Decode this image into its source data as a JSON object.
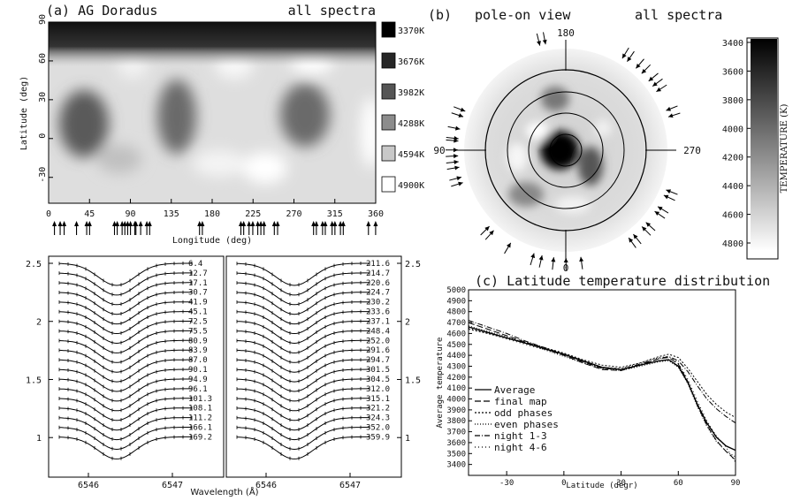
{
  "panel_a": {
    "title_left": "(a) AG Doradus",
    "title_right": "all spectra",
    "xlabel": "Longitude (deg)",
    "ylabel": "Latitude (deg)",
    "xticks": [
      "0",
      "45",
      "90",
      "135",
      "180",
      "225",
      "270",
      "315",
      "360"
    ],
    "yticks": [
      "90",
      "60",
      "30",
      "0",
      "-30"
    ],
    "legend": [
      {
        "label": "3370K",
        "color": "#000000"
      },
      {
        "label": "3676K",
        "color": "#262626"
      },
      {
        "label": "3982K",
        "color": "#555555"
      },
      {
        "label": "4288K",
        "color": "#8c8c8c"
      },
      {
        "label": "4594K",
        "color": "#c8c8c8"
      },
      {
        "label": "4900K",
        "color": "#ffffff"
      }
    ]
  },
  "panel_b": {
    "title_left": "(b)",
    "title_mid": "pole-on view",
    "title_right": "all spectra",
    "labels": [
      "180",
      "90",
      "270",
      "0"
    ],
    "colorbar_label": "TEMPERATURE (K)",
    "colorbar_ticks": [
      "3400",
      "3600",
      "3800",
      "4000",
      "4200",
      "4400",
      "4600",
      "4800"
    ]
  },
  "panel_lines": {
    "xlabel": "Wavelength (Å)",
    "xticks_left": [
      "6546",
      "6547"
    ],
    "xticks_right": [
      "6546",
      "6547"
    ],
    "yticks": [
      "2.5",
      "2",
      "1.5",
      "1"
    ],
    "phases_left": [
      "6.4",
      "12.7",
      "17.1",
      "30.7",
      "41.9",
      "45.1",
      "72.5",
      "75.5",
      "80.9",
      "83.9",
      "87.0",
      "90.1",
      "94.9",
      "96.1",
      "101.3",
      "108.1",
      "111.2",
      "166.1",
      "169.2"
    ],
    "phases_right": [
      "211.6",
      "214.7",
      "220.6",
      "224.7",
      "230.2",
      "233.6",
      "237.1",
      "248.4",
      "252.0",
      "291.6",
      "294.7",
      "301.5",
      "304.5",
      "312.0",
      "315.1",
      "321.2",
      "324.3",
      "352.0",
      "359.9"
    ]
  },
  "chart_data": [
    {
      "type": "heatmap",
      "title": "(a) AG Doradus",
      "subtitle": "all spectra",
      "xlabel": "Longitude (deg)",
      "ylabel": "Latitude (deg)",
      "xlim": [
        0,
        360
      ],
      "ylim": [
        -50,
        90
      ],
      "spots": [
        {
          "lon": 0,
          "lat": 90,
          "temp_k": 3370
        },
        {
          "lon": 35,
          "lat": 20,
          "temp_k": 3900
        },
        {
          "lon": 115,
          "lat": 60,
          "temp_k": 4250
        },
        {
          "lon": 165,
          "lat": 20,
          "temp_k": 4000
        },
        {
          "lon": 225,
          "lat": 60,
          "temp_k": 4250
        },
        {
          "lon": 305,
          "lat": 25,
          "temp_k": 3950
        },
        {
          "lon": 300,
          "lat": 60,
          "temp_k": 4350
        }
      ],
      "observed_phases": [
        6.4,
        12.7,
        17.1,
        30.7,
        41.9,
        45.1,
        72.5,
        75.5,
        80.9,
        83.9,
        87.0,
        90.1,
        94.9,
        96.1,
        101.3,
        108.1,
        111.2,
        166.1,
        169.2,
        211.6,
        214.7,
        220.6,
        224.7,
        230.2,
        233.6,
        237.1,
        248.4,
        252.0,
        291.6,
        294.7,
        301.5,
        304.5,
        312.0,
        315.1,
        321.2,
        324.3,
        352.0,
        359.9
      ]
    },
    {
      "type": "line",
      "title": "(c) Latitude temperature distribution",
      "xlabel": "Latitude (degr)",
      "ylabel": "Average temperature",
      "xlim": [
        -50,
        90
      ],
      "ylim": [
        3300,
        5000
      ],
      "xticks": [
        -30,
        0,
        30,
        60,
        90
      ],
      "yticks": [
        3400,
        3500,
        3600,
        3700,
        3800,
        3900,
        4000,
        4100,
        4200,
        4300,
        4400,
        4500,
        4600,
        4700,
        4800,
        4900,
        5000
      ],
      "x": [
        -50,
        -40,
        -30,
        -20,
        -10,
        0,
        10,
        20,
        30,
        40,
        50,
        55,
        60,
        65,
        70,
        75,
        80,
        85,
        90
      ],
      "series": [
        {
          "name": "Average",
          "dash": "",
          "values": [
            4660,
            4610,
            4560,
            4510,
            4460,
            4410,
            4350,
            4290,
            4270,
            4310,
            4350,
            4360,
            4300,
            4150,
            3950,
            3780,
            3650,
            3570,
            3530
          ]
        },
        {
          "name": "final map",
          "dash": "7,3",
          "values": [
            4700,
            4640,
            4580,
            4520,
            4460,
            4400,
            4330,
            4270,
            4260,
            4310,
            4370,
            4380,
            4320,
            4160,
            3940,
            3760,
            3620,
            3520,
            3440
          ]
        },
        {
          "name": "odd phases",
          "dash": "2,2",
          "values": [
            4640,
            4600,
            4560,
            4520,
            4470,
            4420,
            4360,
            4310,
            4290,
            4330,
            4390,
            4410,
            4380,
            4280,
            4160,
            4040,
            3950,
            3880,
            3830
          ]
        },
        {
          "name": "even phases",
          "dash": "1,2",
          "values": [
            4670,
            4620,
            4570,
            4510,
            4450,
            4390,
            4330,
            4280,
            4260,
            4300,
            4340,
            4350,
            4290,
            4140,
            3930,
            3750,
            3610,
            3520,
            3470
          ]
        },
        {
          "name": "night 1-3",
          "dash": "6,2,1,2",
          "values": [
            4720,
            4660,
            4600,
            4530,
            4470,
            4410,
            4340,
            4280,
            4270,
            4320,
            4370,
            4390,
            4350,
            4250,
            4120,
            4000,
            3910,
            3840,
            3780
          ]
        },
        {
          "name": "night 4-6",
          "dash": "1,3",
          "values": [
            4650,
            4600,
            4550,
            4500,
            4450,
            4400,
            4340,
            4290,
            4280,
            4330,
            4380,
            4390,
            4330,
            4180,
            3980,
            3800,
            3660,
            3560,
            3420
          ]
        }
      ]
    }
  ]
}
